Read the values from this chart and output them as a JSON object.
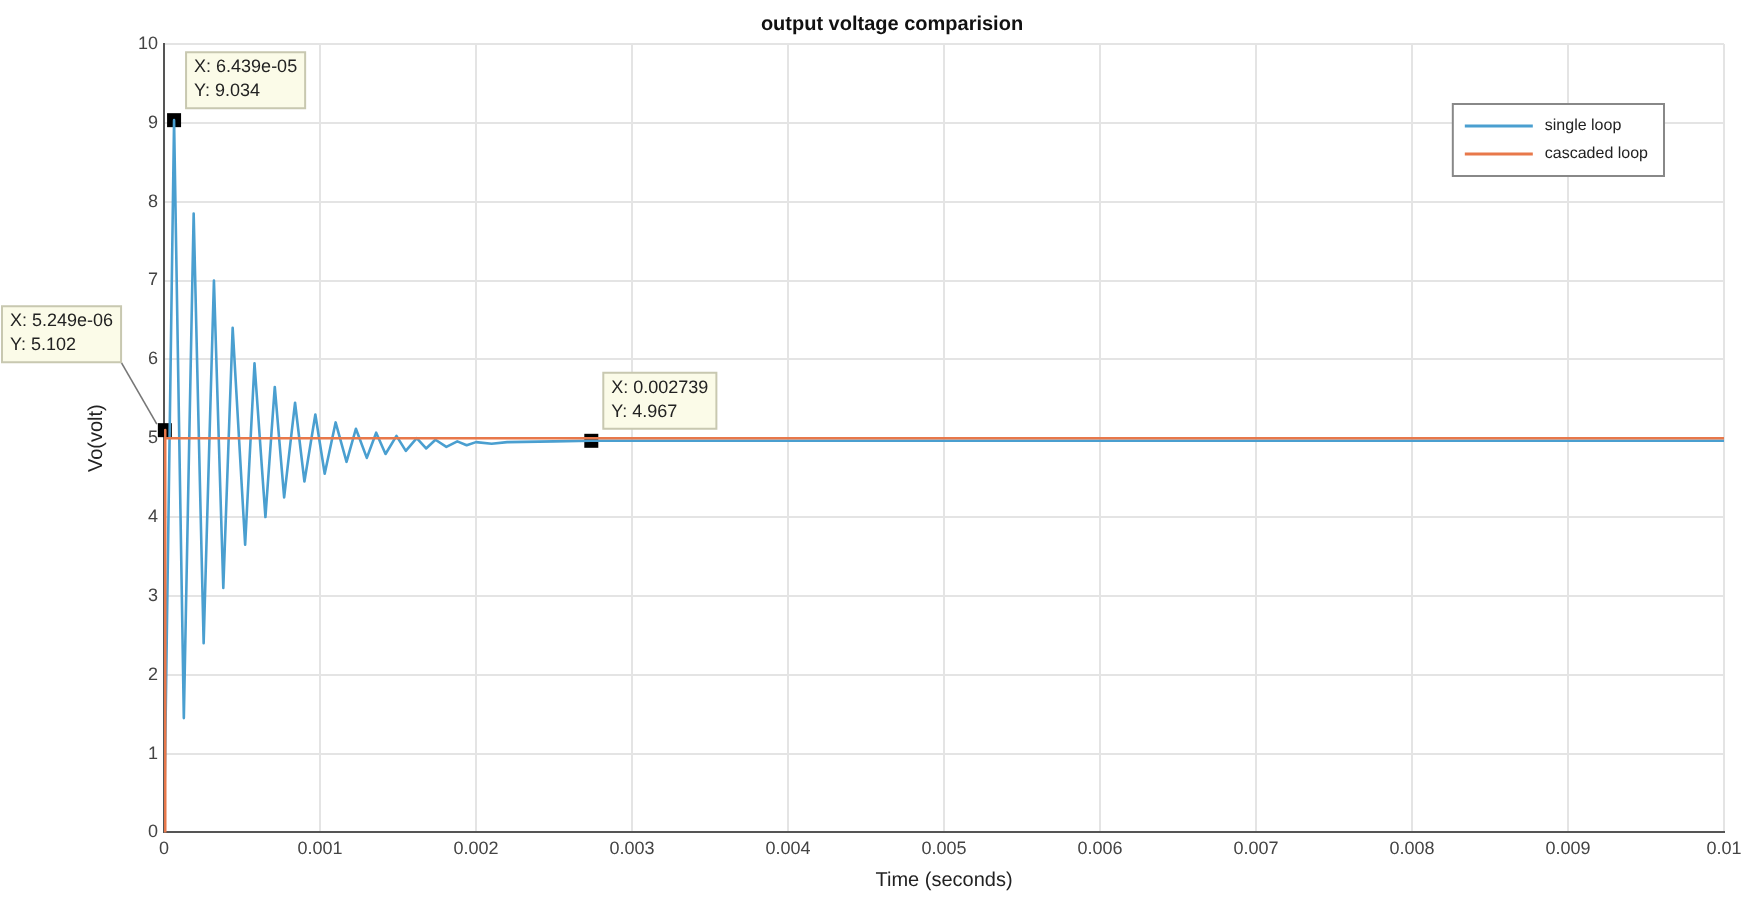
{
  "chart_data": {
    "type": "line",
    "title": "output voltage comparision",
    "xlabel": "Time (seconds)",
    "ylabel": "Vo(volt)",
    "xlim": [
      0,
      0.01
    ],
    "xticks": [
      0,
      0.001,
      0.002,
      0.003,
      0.004,
      0.005,
      0.006,
      0.007,
      0.008,
      0.009,
      0.01
    ],
    "ylim": [
      0,
      10
    ],
    "yticks": [
      0,
      1,
      2,
      3,
      4,
      5,
      6,
      7,
      8,
      9,
      10
    ],
    "grid": true,
    "legend": "top right",
    "marker": "none",
    "line_style": "solid",
    "series": [
      {
        "name": "single loop",
        "color": "#4a9fd0",
        "x": [
          0,
          6.439e-05,
          0.000127,
          0.00019,
          0.000254,
          0.00032,
          0.00038,
          0.00044,
          0.00052,
          0.00058,
          0.00065,
          0.00071,
          0.00077,
          0.00084,
          0.0009,
          0.00097,
          0.00103,
          0.0011,
          0.00117,
          0.00123,
          0.0013,
          0.00136,
          0.00142,
          0.00149,
          0.00155,
          0.00162,
          0.00168,
          0.00174,
          0.00181,
          0.00188,
          0.00194,
          0.002,
          0.0021,
          0.0022,
          0.0025,
          0.002739,
          0.01
        ],
        "values": [
          0,
          9.034,
          1.45,
          7.85,
          2.4,
          7.0,
          3.1,
          6.4,
          3.65,
          5.95,
          4.0,
          5.65,
          4.25,
          5.45,
          4.45,
          5.3,
          4.55,
          5.2,
          4.7,
          5.12,
          4.75,
          5.07,
          4.8,
          5.03,
          4.84,
          5.0,
          4.87,
          4.98,
          4.89,
          4.96,
          4.91,
          4.95,
          4.93,
          4.95,
          4.96,
          4.967,
          4.967
        ]
      },
      {
        "name": "cascaded loop",
        "color": "#e8784a",
        "x": [
          0,
          5.249e-06,
          1e-05,
          0.01
        ],
        "values": [
          0,
          5.102,
          5.0,
          5.0
        ]
      }
    ],
    "annotations": [
      {
        "text": "X: 6.439e-05\nY: 9.034",
        "x": 6.439e-05,
        "y": 9.034
      },
      {
        "text": "X: 5.249e-06\nY: 5.102",
        "x": 5.249e-06,
        "y": 5.102
      },
      {
        "text": "X: 0.002739\nY: 4.967",
        "x": 0.002739,
        "y": 4.967
      }
    ]
  }
}
